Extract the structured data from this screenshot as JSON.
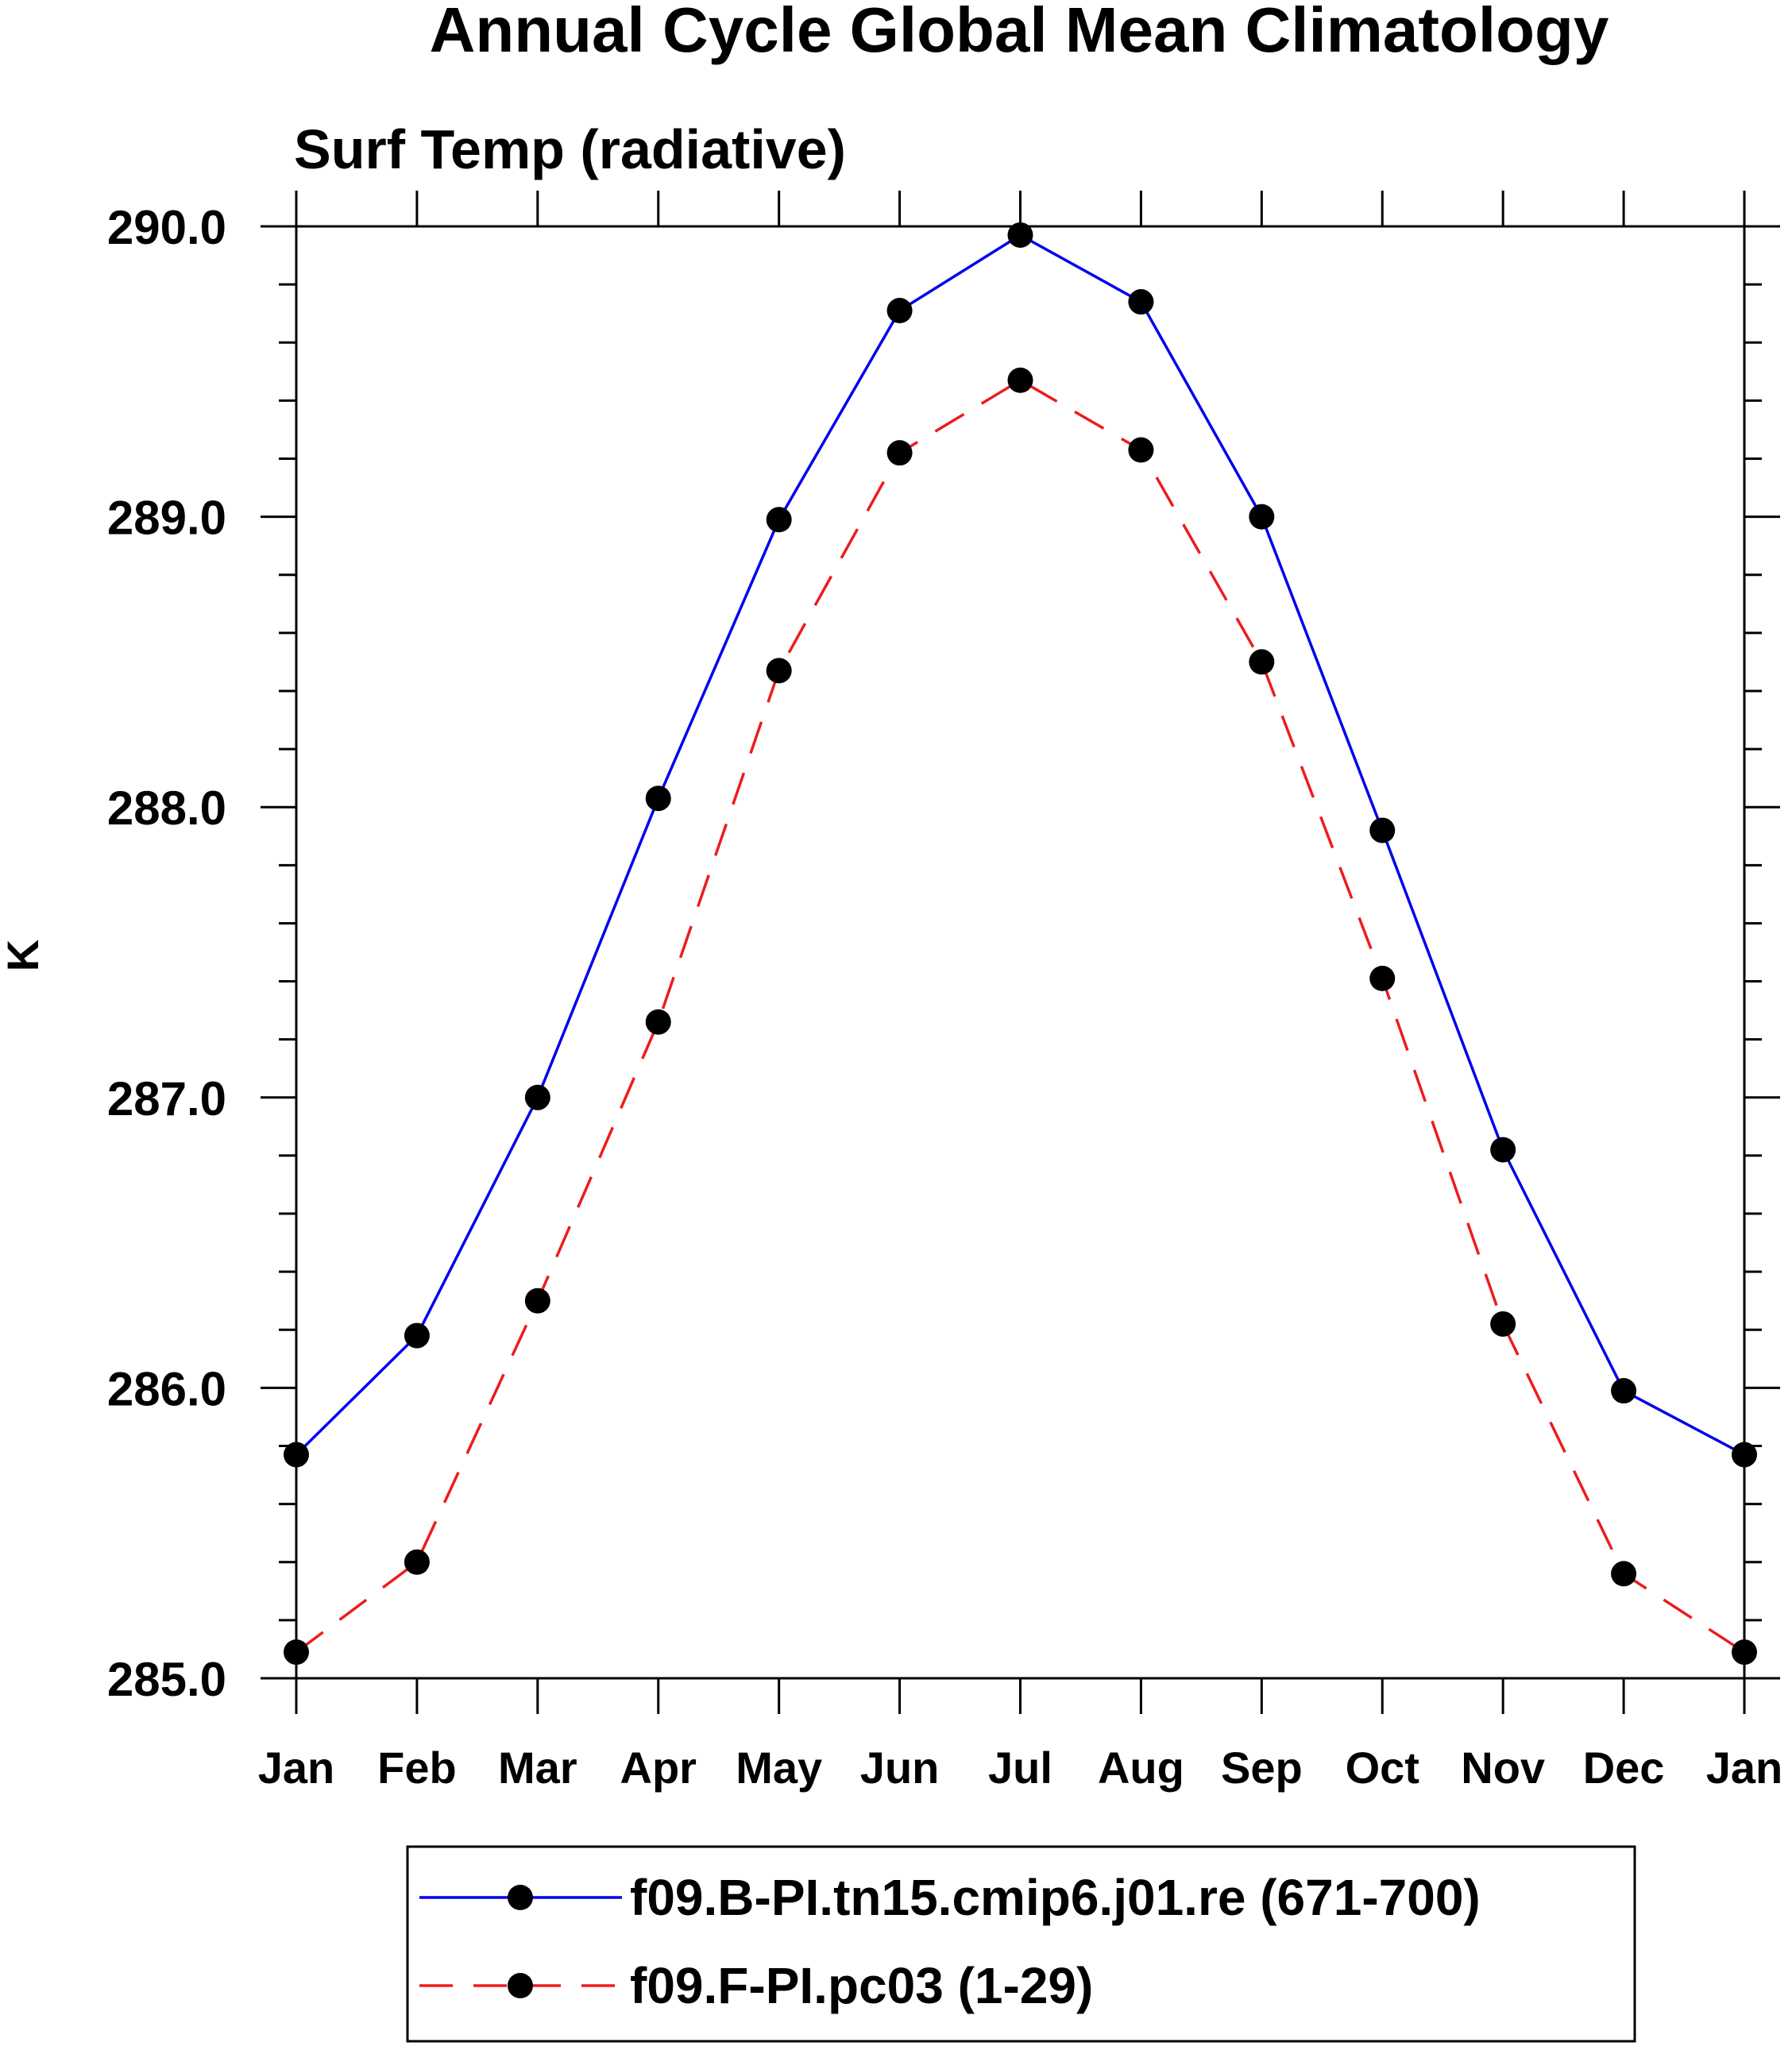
{
  "chart_data": {
    "type": "line",
    "title": "Annual Cycle Global Mean Climatology",
    "subtitle": "Surf Temp (radiative)",
    "xlabel": "",
    "ylabel": "K",
    "categories": [
      "Jan",
      "Feb",
      "Mar",
      "Apr",
      "May",
      "Jun",
      "Jul",
      "Aug",
      "Sep",
      "Oct",
      "Nov",
      "Dec",
      "Jan"
    ],
    "ylim": [
      285.0,
      290.0
    ],
    "yticks": [
      "285.0",
      "286.0",
      "287.0",
      "288.0",
      "289.0",
      "290.0"
    ],
    "grid": false,
    "legend_position": "bottom",
    "series": [
      {
        "name": "f09.B-PI.tn15.cmip6.j01.re (671-700)",
        "color": "#0000ee",
        "line_style": "solid",
        "marker": "filled-circle",
        "values": [
          285.77,
          286.18,
          287.0,
          288.03,
          288.99,
          289.71,
          289.97,
          289.74,
          289.0,
          287.92,
          286.82,
          285.99,
          285.77
        ]
      },
      {
        "name": "f09.F-PI.pc03 (1-29)",
        "color": "#ee1c1c",
        "line_style": "dashed",
        "marker": "filled-circle",
        "values": [
          285.09,
          285.4,
          286.3,
          287.26,
          288.47,
          289.22,
          289.47,
          289.23,
          288.5,
          287.41,
          286.22,
          285.36,
          285.09
        ]
      }
    ]
  }
}
